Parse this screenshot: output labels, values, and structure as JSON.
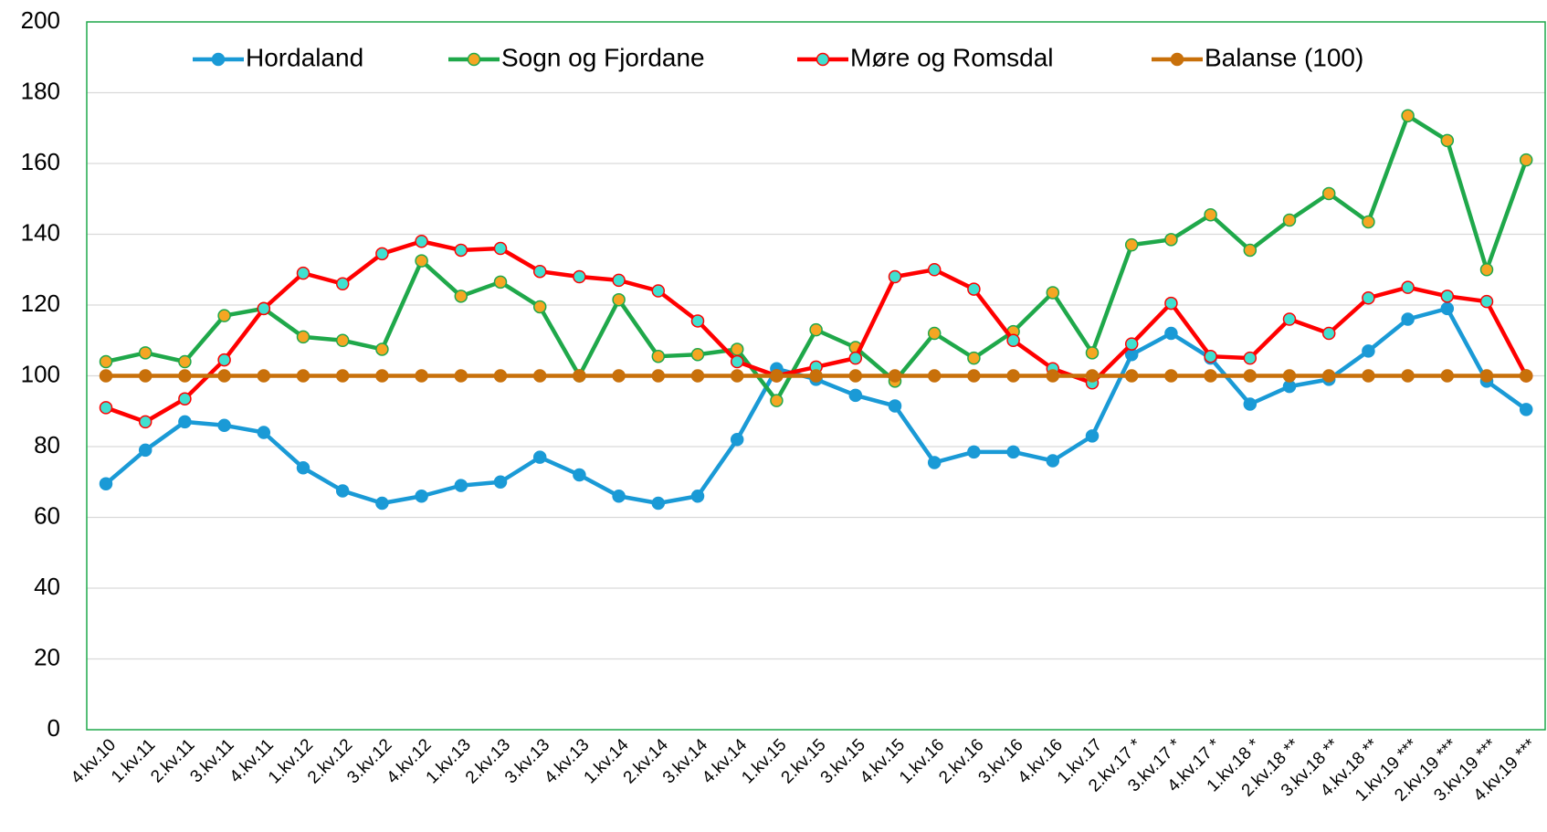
{
  "chart_data": {
    "type": "line",
    "categories": [
      "4.kv.10",
      "1.kv.11",
      "2.kv.11",
      "3.kv.11",
      "4.kv.11",
      "1.kv.12",
      "2.kv.12",
      "3.kv.12",
      "4.kv.12",
      "1.kv.13",
      "2.kv.13",
      "3.kv.13",
      "4.kv.13",
      "1.kv.14",
      "2.kv.14",
      "3.kv.14",
      "4.kv.14",
      "1.kv.15",
      "2.kv.15",
      "3.kv.15",
      "4.kv.15",
      "1.kv.16",
      "2.kv.16",
      "3.kv.16",
      "4.kv.16",
      "1.kv.17",
      "2.kv.17 *",
      "3.kv.17 *",
      "4.kv.17 *",
      "1.kv.18 *",
      "2.kv.18 **",
      "3.kv.18 **",
      "4.kv.18 **",
      "1.kv.19 ***",
      "2.kv.19 ***",
      "3.kv.19 ***",
      "4.kv.19 ***"
    ],
    "series": [
      {
        "name": "Hordaland",
        "color": "#1a9ad6",
        "marker_color": "#1a9ad6",
        "values": [
          69.5,
          79,
          87,
          86,
          84,
          74,
          67.5,
          64,
          66,
          69,
          70,
          77,
          72,
          66,
          64,
          66,
          82,
          102,
          99,
          94.5,
          91.5,
          75.5,
          78.5,
          78.5,
          76,
          83,
          106,
          112,
          105,
          92,
          97,
          99,
          107,
          116,
          119,
          98.5,
          90.5
        ]
      },
      {
        "name": "Sogn og Fjordane",
        "color": "#1fa84a",
        "marker_color": "#f5a623",
        "values": [
          104,
          106.5,
          104,
          117,
          119,
          111,
          110,
          107.5,
          132.5,
          122.5,
          126.5,
          119.5,
          100,
          121.5,
          105.5,
          106,
          107.5,
          93,
          113,
          108,
          98.5,
          112,
          105,
          112.5,
          123.5,
          106.5,
          137,
          138.5,
          145.5,
          135.5,
          144,
          151.5,
          143.5,
          173.5,
          166.5,
          130,
          161
        ]
      },
      {
        "name": "Møre og Romsdal",
        "color": "#ff0000",
        "marker_color": "#40e0d0",
        "values": [
          91,
          87,
          93.5,
          104.5,
          119,
          129,
          126,
          134.5,
          138,
          135.5,
          136,
          129.5,
          128,
          127,
          124,
          115.5,
          104,
          100,
          102.5,
          105,
          128,
          130,
          124.5,
          110,
          102,
          98,
          109,
          120.5,
          105.5,
          105,
          116,
          112,
          122,
          125,
          122.5,
          121,
          100
        ]
      },
      {
        "name": "Balanse (100)",
        "color": "#c8700a",
        "marker_color": "#c8700a",
        "values": [
          100,
          100,
          100,
          100,
          100,
          100,
          100,
          100,
          100,
          100,
          100,
          100,
          100,
          100,
          100,
          100,
          100,
          100,
          100,
          100,
          100,
          100,
          100,
          100,
          100,
          100,
          100,
          100,
          100,
          100,
          100,
          100,
          100,
          100,
          100,
          100,
          100
        ]
      }
    ],
    "ylim": [
      0,
      200
    ],
    "yticks": [
      0,
      20,
      40,
      60,
      80,
      100,
      120,
      140,
      160,
      180,
      200
    ],
    "grid": true,
    "legend": "top"
  }
}
